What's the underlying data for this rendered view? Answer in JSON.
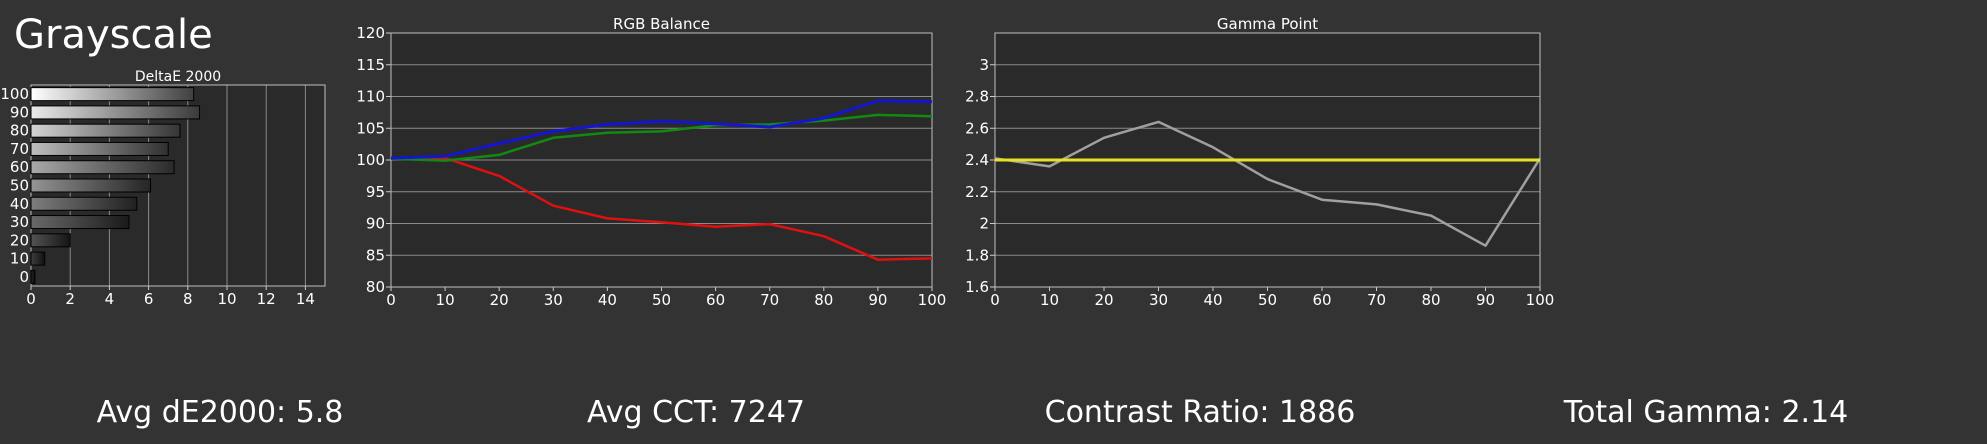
{
  "page": {
    "title": "Grayscale"
  },
  "stats": {
    "avg_de": "Avg dE2000: 5.8",
    "avg_cct": "Avg CCT: 7247",
    "contrast": "Contrast Ratio: 1886",
    "total_gamma": "Total Gamma: 2.14"
  },
  "colors": {
    "background": "#333333",
    "plot_background": "#2a2a2a",
    "grid": "#8a8a8a",
    "red": "#e01010",
    "green": "#118a11",
    "blue": "#1515d0",
    "gamma_measured": "#a0a0a0",
    "gamma_target": "#e8e02a"
  },
  "chart_data": [
    {
      "type": "bar",
      "orientation": "horizontal",
      "title": "DeltaE 2000",
      "categories": [
        "0",
        "10",
        "20",
        "30",
        "40",
        "50",
        "60",
        "70",
        "80",
        "90",
        "100"
      ],
      "values": [
        0.2,
        0.7,
        2.0,
        5.0,
        5.4,
        6.1,
        7.3,
        7.0,
        7.6,
        8.6,
        8.3
      ],
      "xlim": [
        0,
        15
      ],
      "xticks": [
        0,
        2,
        4,
        6,
        8,
        10,
        12,
        14
      ],
      "grid": true
    },
    {
      "type": "line",
      "title": "RGB Balance",
      "x": [
        0,
        10,
        20,
        30,
        40,
        50,
        60,
        70,
        80,
        90,
        100
      ],
      "xticks": [
        0,
        10,
        20,
        30,
        40,
        50,
        60,
        70,
        80,
        90,
        100
      ],
      "ylim": [
        80,
        120
      ],
      "yticks": [
        80,
        85,
        90,
        95,
        100,
        105,
        110,
        115,
        120
      ],
      "grid": true,
      "series": [
        {
          "color": "red",
          "values": [
            100.2,
            100.3,
            97.5,
            92.8,
            90.8,
            90.2,
            89.5,
            89.9,
            88.0,
            84.3,
            84.5
          ]
        },
        {
          "color": "green",
          "values": [
            100.2,
            99.9,
            100.8,
            103.5,
            104.3,
            104.5,
            105.5,
            105.6,
            106.2,
            107.1,
            106.9
          ]
        },
        {
          "color": "blue",
          "values": [
            100.3,
            100.6,
            102.6,
            104.5,
            105.6,
            106.1,
            105.7,
            105.2,
            106.6,
            109.3,
            109.2
          ]
        }
      ]
    },
    {
      "type": "line",
      "title": "Gamma Point",
      "x": [
        0,
        10,
        20,
        30,
        40,
        50,
        60,
        70,
        80,
        90,
        100
      ],
      "xticks": [
        0,
        10,
        20,
        30,
        40,
        50,
        60,
        70,
        80,
        90,
        100
      ],
      "ylim": [
        1.6,
        3.2
      ],
      "yticks": [
        1.6,
        1.8,
        2,
        2.2,
        2.4,
        2.6,
        2.8,
        3
      ],
      "grid": true,
      "series": [
        {
          "color": "gamma_measured",
          "values": [
            2.41,
            2.36,
            2.54,
            2.64,
            2.48,
            2.28,
            2.15,
            2.12,
            2.05,
            1.86,
            2.41
          ]
        },
        {
          "color": "gamma_target",
          "values": [
            2.4,
            2.4,
            2.4,
            2.4,
            2.4,
            2.4,
            2.4,
            2.4,
            2.4,
            2.4,
            2.4
          ]
        }
      ]
    }
  ]
}
